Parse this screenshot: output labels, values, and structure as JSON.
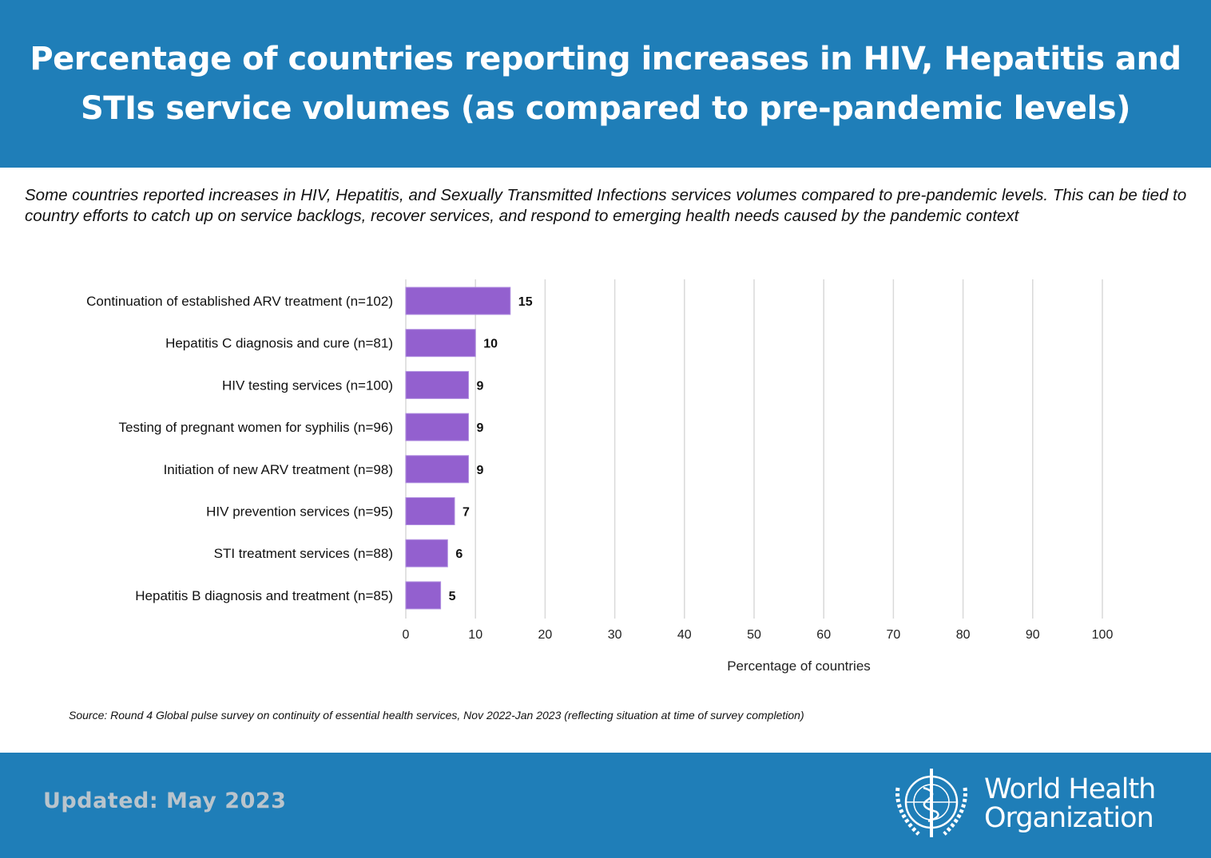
{
  "header": {
    "title": "Percentage of countries reporting increases in HIV, Hepatitis and STIs service volumes (as compared to pre-pandemic levels)"
  },
  "subtitle": "Some countries reported increases in HIV, Hepatitis, and Sexually Transmitted Infections services volumes compared to pre-pandemic levels. This can be tied to country efforts to catch up on service backlogs, recover services, and respond to emerging health needs caused by the pandemic context",
  "chart_data": {
    "type": "bar",
    "orientation": "horizontal",
    "categories": [
      "Continuation of established ARV treatment (n=102)",
      "Hepatitis C diagnosis and cure (n=81)",
      "HIV testing services (n=100)",
      "Testing of pregnant women for syphilis (n=96)",
      "Initiation of new ARV treatment (n=98)",
      "HIV prevention services (n=95)",
      "STI treatment services (n=88)",
      "Hepatitis B diagnosis and treatment (n=85)"
    ],
    "values": [
      15,
      10,
      9,
      9,
      9,
      7,
      6,
      5
    ],
    "xlabel": "Percentage of countries",
    "xlim": [
      0,
      100
    ],
    "xticks": [
      "0",
      "10",
      "20",
      "30",
      "40",
      "50",
      "60",
      "70",
      "80",
      "90",
      "100"
    ],
    "grid": true,
    "bar_color": "#9360cf"
  },
  "source": "Source: Round 4 Global pulse survey on continuity of essential health  services, Nov 2022-Jan 2023 (reflecting situation at time of survey completion)",
  "footer": {
    "updated": "Updated: May 2023",
    "logo_text_line1": "World Health",
    "logo_text_line2": "Organization"
  },
  "colors": {
    "brand_blue": "#1f7eb8"
  }
}
